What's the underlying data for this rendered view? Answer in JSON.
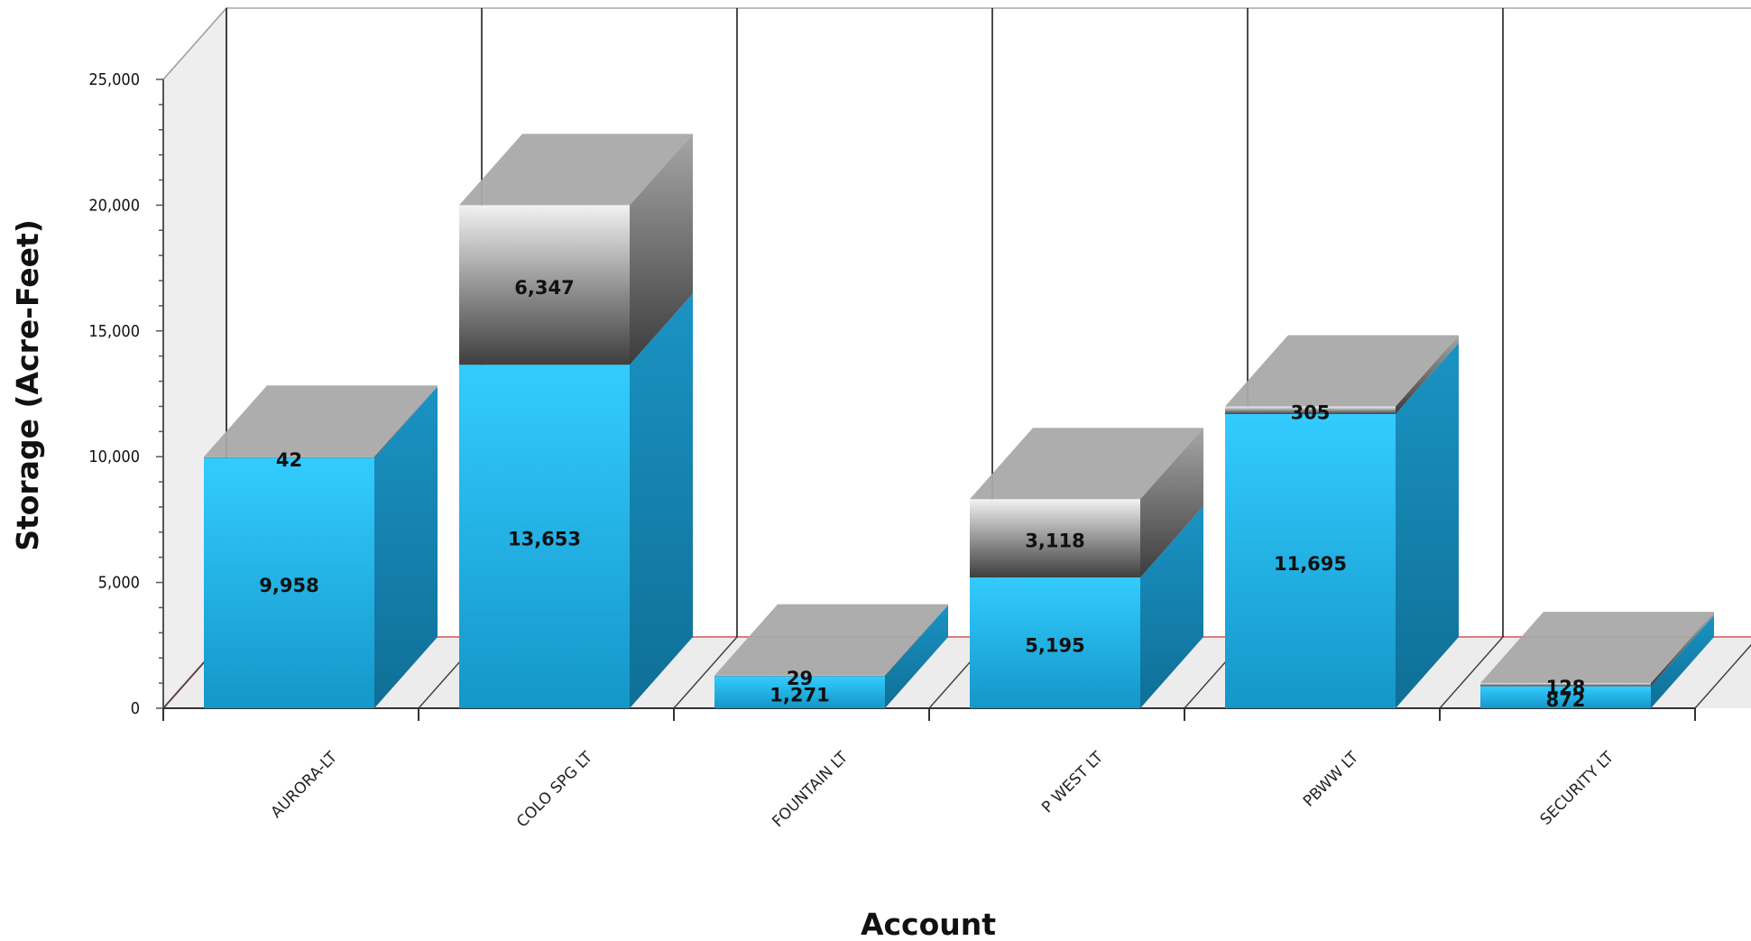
{
  "chart_data": {
    "type": "bar",
    "stacked": true,
    "three_d": true,
    "categories": [
      "AURORA-LT",
      "COLO SPG LT",
      "FOUNTAIN LT",
      "P WEST LT",
      "PBWW LT",
      "SECURITY LT"
    ],
    "series": [
      {
        "values": [
          9958,
          13653,
          1271,
          5195,
          11695,
          872
        ],
        "color": "#1fb7ea"
      },
      {
        "values": [
          42,
          6347,
          29,
          3118,
          305,
          128
        ],
        "color": "#8a8a8a"
      }
    ],
    "data_labels": {
      "bottom": [
        "9,958",
        "13,653",
        "1,271",
        "5,195",
        "11,695",
        "872"
      ],
      "top": [
        "42",
        "6,347",
        "29",
        "3,118",
        "305",
        "128"
      ]
    },
    "xlabel": "Account",
    "ylabel": "Storage (Acre-Feet)",
    "ylim": [
      0,
      25000
    ],
    "yticks": [
      0,
      5000,
      10000,
      15000,
      20000,
      25000
    ],
    "ytick_labels": [
      "0",
      "5,000",
      "10,000",
      "15,000",
      "20,000",
      "25,000"
    ],
    "grid": true,
    "legend": "none"
  }
}
